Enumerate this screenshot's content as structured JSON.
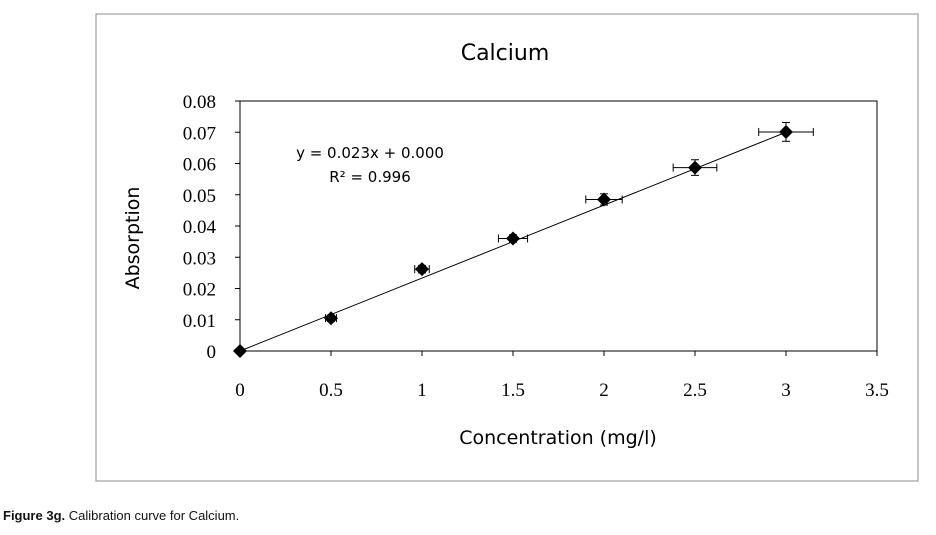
{
  "chart_data": {
    "type": "scatter",
    "title": "Calcium",
    "xlabel": "Concentration (mg/l)",
    "ylabel": "Absorption",
    "xlim": [
      0,
      3.5
    ],
    "ylim": [
      0,
      0.08
    ],
    "x_ticks": [
      "0",
      "0.5",
      "1",
      "1.5",
      "2",
      "2.5",
      "3",
      "3.5"
    ],
    "y_ticks": [
      "0",
      "0.01",
      "0.02",
      "0.03",
      "0.04",
      "0.05",
      "0.06",
      "0.07",
      "0.08"
    ],
    "grid": false,
    "legend": "none",
    "points": [
      {
        "x": 0,
        "y": 0,
        "xerr": 0,
        "yerr": 0
      },
      {
        "x": 0.5,
        "y": 0.0105,
        "xerr": 0.03,
        "yerr": 0.001
      },
      {
        "x": 1.0,
        "y": 0.0262,
        "xerr": 0.04,
        "yerr": 0.0012
      },
      {
        "x": 1.5,
        "y": 0.036,
        "xerr": 0.08,
        "yerr": 0.0012
      },
      {
        "x": 2.0,
        "y": 0.0485,
        "xerr": 0.1,
        "yerr": 0.0018
      },
      {
        "x": 2.5,
        "y": 0.0587,
        "xerr": 0.12,
        "yerr": 0.0025
      },
      {
        "x": 3.0,
        "y": 0.0701,
        "xerr": 0.15,
        "yerr": 0.003
      }
    ],
    "trendline": {
      "slope": 0.023333,
      "intercept": 0.0,
      "x_range": [
        0,
        3.0
      ]
    },
    "annotation_equation": "y = 0.023x + 0.000",
    "annotation_r2": "R² = 0.996",
    "marker_color": "#000000"
  },
  "caption": {
    "label": "Figure 3g.",
    "text": " Calibration curve for Calcium."
  }
}
